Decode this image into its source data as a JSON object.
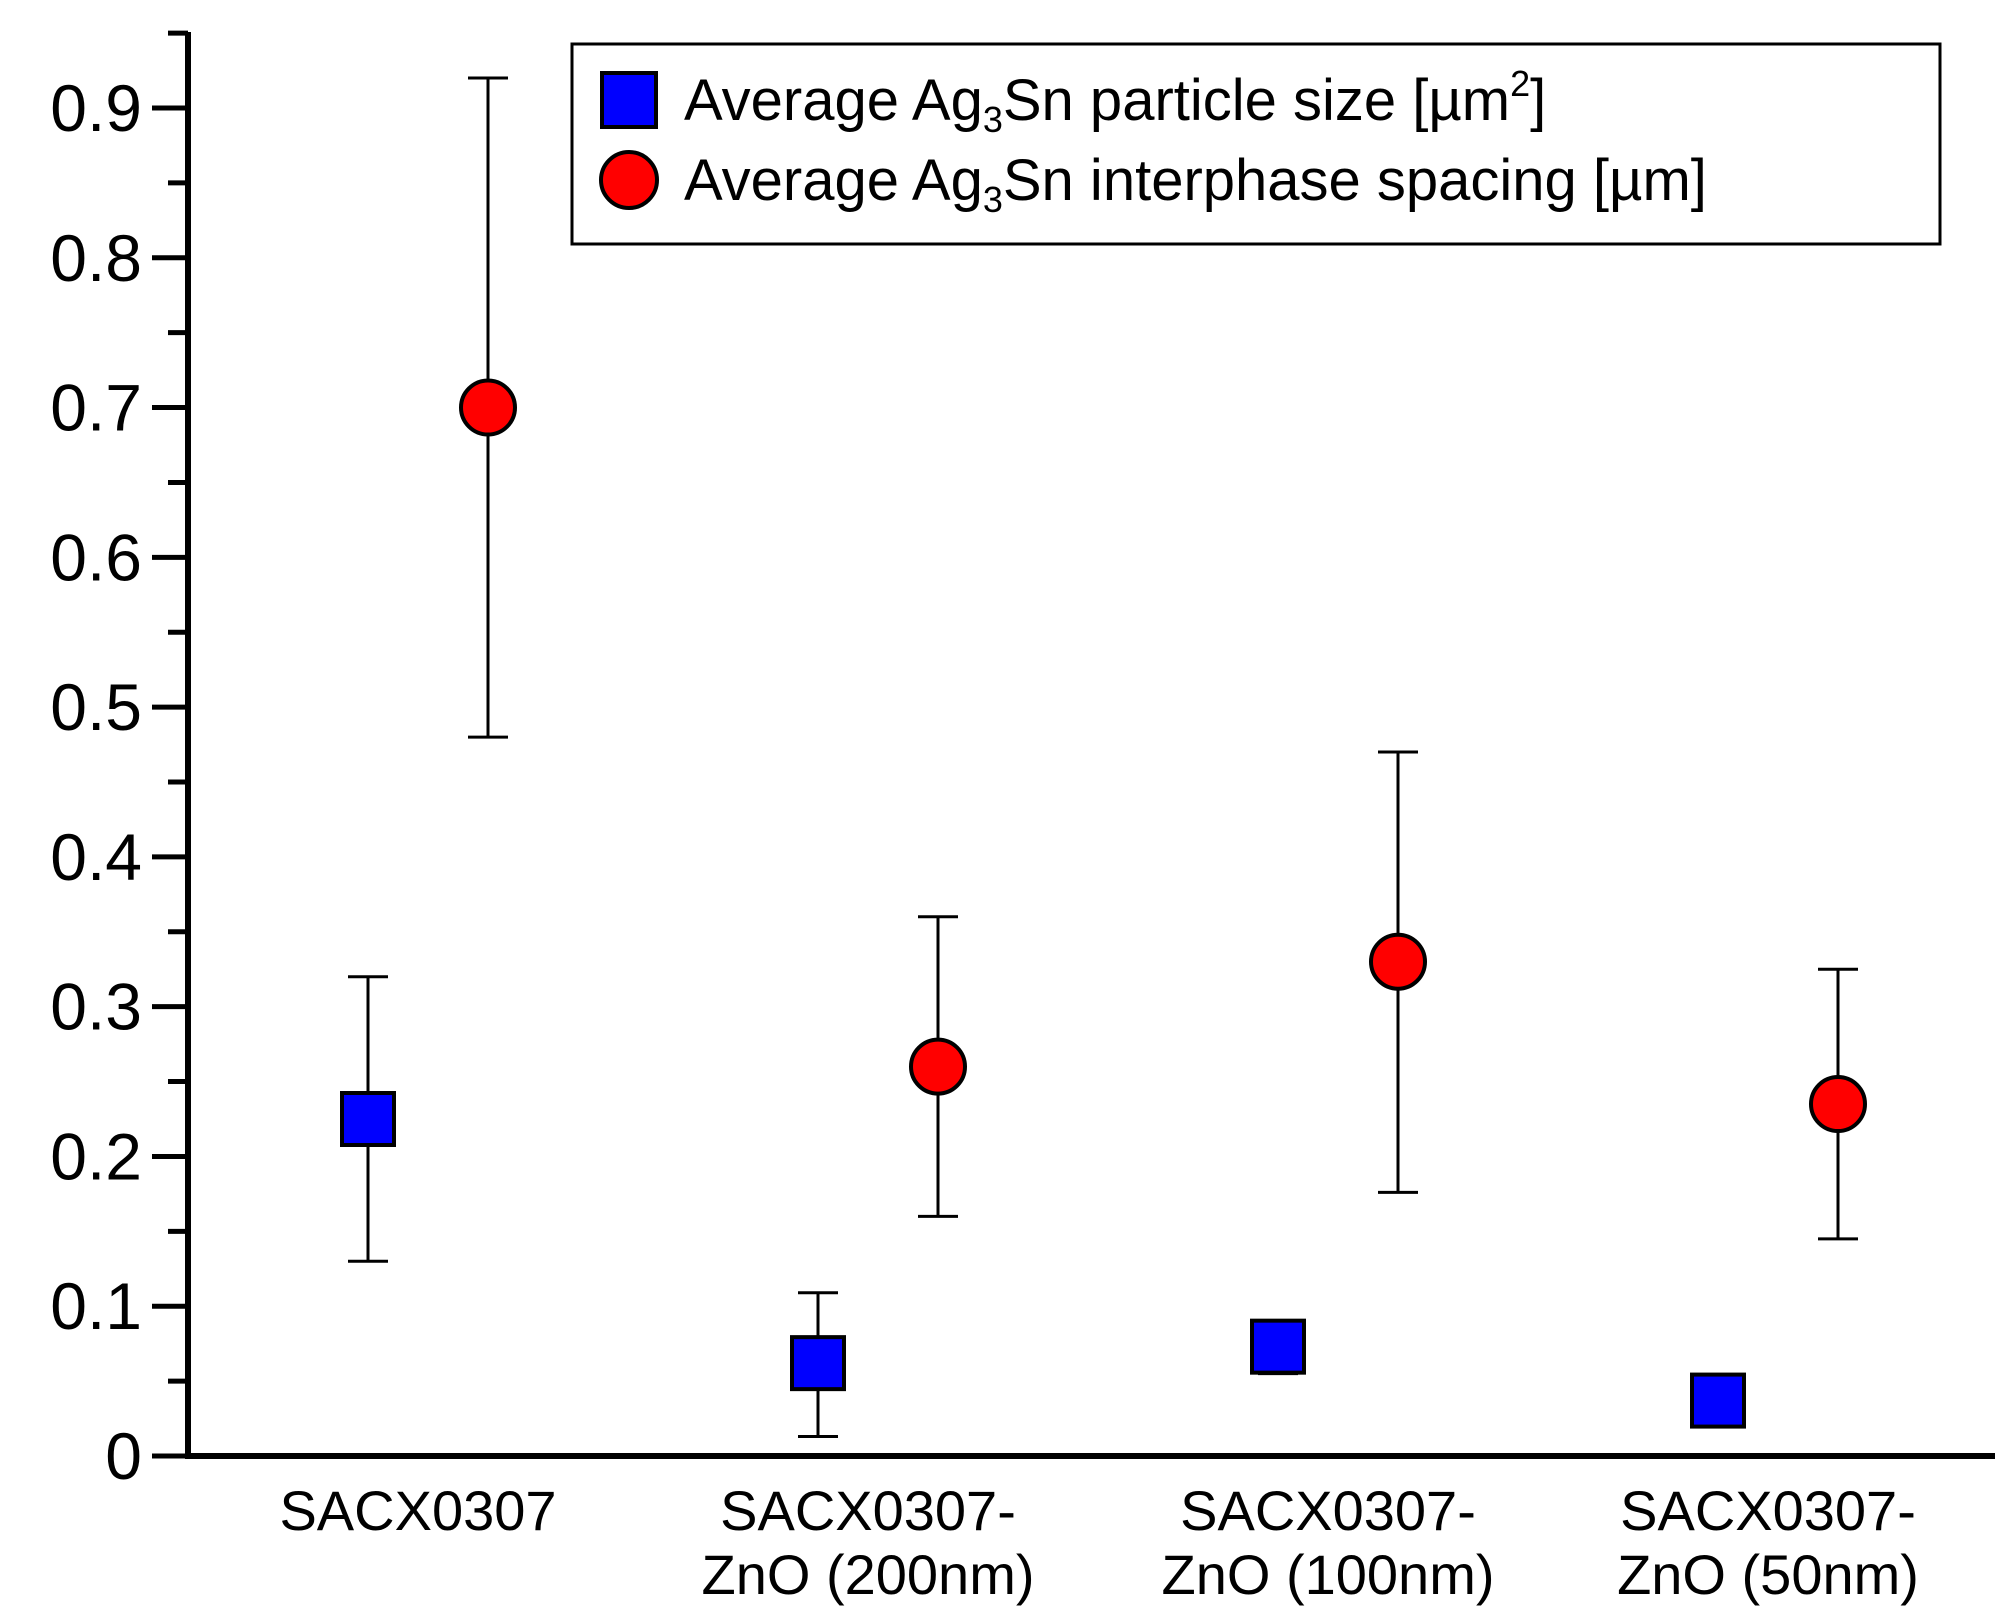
{
  "chart_data": {
    "type": "scatter",
    "title": "",
    "xlabel": "",
    "ylabel": "",
    "ylim": [
      0,
      0.95
    ],
    "yticks": [
      0,
      0.1,
      0.2,
      0.3,
      0.4,
      0.5,
      0.6,
      0.7,
      0.8,
      0.9
    ],
    "ytick_labels": [
      "0",
      "0.1",
      "0.2",
      "0.3",
      "0.4",
      "0.5",
      "0.6",
      "0.7",
      "0.8",
      "0.9"
    ],
    "yminor_step": 0.05,
    "grid": false,
    "legend_position": "top-right",
    "categories": [
      [
        "SACX0307"
      ],
      [
        "SACX0307-",
        "ZnO (200nm)"
      ],
      [
        "SACX0307-",
        "ZnO (100nm)"
      ],
      [
        "SACX0307-",
        "ZnO (50nm)"
      ]
    ],
    "series": [
      {
        "name": "Average Ag3Sn particle size [µm2]",
        "legend_parts": [
          "Average Ag",
          "3",
          "Sn particle size [µm",
          "2",
          "]"
        ],
        "marker": "square",
        "color": "#0000ff",
        "values": [
          0.225,
          0.062,
          0.073,
          0.037
        ],
        "err_low": [
          0.13,
          0.013,
          0.055,
          0.037
        ],
        "err_high": [
          0.32,
          0.109,
          0.088,
          0.037
        ]
      },
      {
        "name": "Average Ag3Sn interphase spacing [µm]",
        "legend_parts": [
          "Average Ag",
          "3",
          "Sn interphase spacing [µm]"
        ],
        "marker": "circle",
        "color": "#ff0000",
        "values": [
          0.7,
          0.26,
          0.33,
          0.235
        ],
        "err_low": [
          0.48,
          0.16,
          0.176,
          0.145
        ],
        "err_high": [
          0.92,
          0.36,
          0.47,
          0.325
        ]
      }
    ]
  }
}
